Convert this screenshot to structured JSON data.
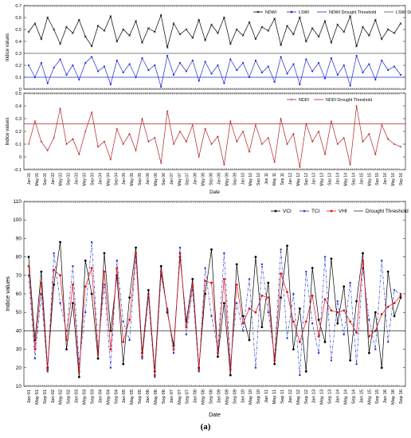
{
  "caption": "(a)",
  "chart_data": [
    {
      "type": "line",
      "ylabel": "Indice values",
      "xlabel": "",
      "ylim": [
        0,
        0.7
      ],
      "yticks": [
        0,
        0.1,
        0.2,
        0.3,
        0.4,
        0.5,
        0.6,
        0.7
      ],
      "legend_position": "top-right",
      "series": [
        {
          "name": "NDWI",
          "color": "#000000",
          "style": "solid",
          "marker": "x",
          "values": [
            0.48,
            0.55,
            0.42,
            0.6,
            0.5,
            0.38,
            0.52,
            0.47,
            0.58,
            0.44,
            0.36,
            0.53,
            0.49,
            0.61,
            0.4,
            0.5,
            0.45,
            0.57,
            0.39,
            0.51,
            0.48,
            0.62,
            0.35,
            0.55,
            0.46,
            0.5,
            0.43,
            0.58,
            0.41,
            0.54,
            0.47,
            0.6,
            0.38,
            0.5,
            0.45,
            0.56,
            0.42,
            0.52,
            0.49,
            0.59,
            0.37,
            0.53,
            0.46,
            0.6,
            0.4,
            0.51,
            0.44,
            0.57,
            0.39,
            0.54,
            0.48,
            0.61,
            0.36,
            0.52,
            0.45,
            0.58,
            0.42,
            0.5,
            0.47,
            0.55
          ]
        },
        {
          "name": "LSWI",
          "color": "#1f2bd0",
          "style": "solid",
          "marker": "o",
          "values": [
            0.2,
            0.1,
            0.22,
            0.05,
            0.18,
            0.25,
            0.12,
            0.2,
            0.08,
            0.22,
            0.27,
            0.15,
            0.19,
            0.04,
            0.24,
            0.14,
            0.21,
            0.1,
            0.26,
            0.16,
            0.2,
            0.02,
            0.28,
            0.12,
            0.22,
            0.15,
            0.24,
            0.07,
            0.23,
            0.13,
            0.2,
            0.05,
            0.25,
            0.16,
            0.22,
            0.1,
            0.24,
            0.14,
            0.19,
            0.06,
            0.27,
            0.13,
            0.21,
            0.04,
            0.25,
            0.15,
            0.22,
            0.09,
            0.26,
            0.12,
            0.2,
            0.03,
            0.28,
            0.14,
            0.21,
            0.08,
            0.24,
            0.16,
            0.19,
            0.12
          ]
        },
        {
          "name": "NDWI Drought Threshold",
          "color": "#1f2bd0",
          "style": "solid",
          "constant": 0.1
        },
        {
          "name": "LSWI Drought Threshold",
          "color": "#555555",
          "style": "solid",
          "constant": 0.3
        }
      ]
    },
    {
      "type": "line",
      "ylabel": "Indice values",
      "xlabel": "Date",
      "ylim": [
        -0.1,
        0.5
      ],
      "yticks": [
        -0.1,
        0,
        0.1,
        0.2,
        0.3,
        0.4,
        0.5
      ],
      "legend_position": "top-right",
      "series": [
        {
          "name": "NDDI",
          "color": "#b02020",
          "style": "solid",
          "marker": "+",
          "values": [
            0.1,
            0.28,
            0.12,
            0.05,
            0.15,
            0.38,
            0.1,
            0.14,
            0.02,
            0.2,
            0.35,
            0.08,
            0.12,
            -0.02,
            0.22,
            0.1,
            0.18,
            0.05,
            0.3,
            0.12,
            0.15,
            -0.05,
            0.36,
            0.1,
            0.2,
            0.12,
            0.25,
            0.0,
            0.22,
            0.1,
            0.16,
            -0.06,
            0.28,
            0.12,
            0.2,
            0.04,
            0.25,
            0.1,
            0.15,
            -0.04,
            0.3,
            0.1,
            0.18,
            -0.08,
            0.26,
            0.12,
            0.2,
            0.02,
            0.28,
            0.1,
            0.15,
            -0.06,
            0.4,
            0.12,
            0.18,
            0.02,
            0.25,
            0.14,
            0.1,
            0.08
          ]
        },
        {
          "name": "NDDI Drought Threshold",
          "color": "#b02020",
          "style": "solid",
          "constant": 0.26
        }
      ],
      "xticks": [
        "Jan 01",
        "May 01",
        "Sep 01",
        "Jan 02",
        "May 02",
        "Sep 02",
        "Jan 03",
        "May 03",
        "Sep 03",
        "Jan 04",
        "May 04",
        "Sep 04",
        "Jan 05",
        "May 05",
        "Sep 05",
        "Jan 06",
        "May 06",
        "Sep 06",
        "Jan 07",
        "May 07",
        "Sep 07",
        "Jan 08",
        "May 08",
        "Sep 08",
        "Jan 09",
        "May 09",
        "Sep 09",
        "Jan 10",
        "May 10",
        "Sep 10",
        "Jan 11",
        "May 11",
        "Sep 11",
        "Jan 12",
        "May 12",
        "Sep 12",
        "Jan 13",
        "May 13",
        "Sep 13",
        "Jan 14",
        "May 14",
        "Sep 14",
        "Jan 15",
        "May 15",
        "Sep 15",
        "Jan 16",
        "May 16",
        "Sep 16"
      ]
    },
    {
      "type": "line",
      "ylabel": "Indice values",
      "xlabel": "Date",
      "ylim": [
        10,
        110
      ],
      "yticks": [
        10,
        20,
        30,
        40,
        50,
        60,
        70,
        80,
        90,
        100,
        110
      ],
      "legend_position": "top-right",
      "series": [
        {
          "name": "VCI",
          "color": "#000000",
          "style": "solid",
          "marker": "o",
          "values": [
            80,
            35,
            72,
            20,
            65,
            88,
            30,
            55,
            15,
            78,
            60,
            25,
            82,
            40,
            70,
            22,
            58,
            85,
            28,
            62,
            18,
            75,
            50,
            32,
            80,
            45,
            68,
            20,
            60,
            84,
            26,
            55,
            16,
            76,
            48,
            35,
            80,
            42,
            66,
            22,
            58,
            86,
            30,
            52,
            18,
            74,
            46,
            34,
            79,
            44,
            64,
            24,
            56,
            82,
            28,
            50,
            20,
            72,
            48,
            58
          ]
        },
        {
          "name": "TCI",
          "color": "#2030d0",
          "style": "dashdot",
          "marker": "*",
          "values": [
            70,
            25,
            60,
            18,
            82,
            55,
            40,
            75,
            22,
            50,
            88,
            30,
            65,
            20,
            78,
            45,
            35,
            80,
            25,
            58,
            15,
            70,
            52,
            28,
            85,
            38,
            62,
            18,
            74,
            48,
            30,
            82,
            22,
            55,
            40,
            68,
            20,
            76,
            50,
            26,
            84,
            36,
            60,
            16,
            72,
            44,
            28,
            80,
            24,
            56,
            38,
            66,
            22,
            74,
            46,
            30,
            78,
            34,
            62,
            60
          ]
        },
        {
          "name": "VHI",
          "color": "#e01010",
          "style": "solid",
          "marker": "o",
          "values": [
            75,
            30,
            66,
            19,
            73,
            70,
            35,
            65,
            18,
            64,
            74,
            28,
            72,
            30,
            74,
            34,
            46,
            82,
            26,
            60,
            16,
            72,
            51,
            30,
            82,
            42,
            65,
            19,
            67,
            66,
            28,
            68,
            19,
            65,
            44,
            52,
            50,
            59,
            58,
            24,
            71,
            61,
            45,
            34,
            45,
            59,
            37,
            57,
            51,
            50,
            51,
            45,
            39,
            78,
            37,
            40,
            49,
            53,
            55,
            59
          ]
        },
        {
          "name": "Drought Threshold",
          "color": "#333333",
          "style": "solid",
          "constant": 40
        }
      ],
      "xticks": [
        "Jan 01",
        "May 01",
        "Sep 01",
        "Jan 02",
        "May 02",
        "Sep 02",
        "Jan 03",
        "May 03",
        "Sep 03",
        "Jan 04",
        "May 04",
        "Sep 04",
        "Jan 05",
        "May 05",
        "Sep 05",
        "Jan 06",
        "May 06",
        "Sep 06",
        "Jan 07",
        "May 07",
        "Sep 07",
        "Jan 08",
        "May 08",
        "Sep 08",
        "Jan 09",
        "May 09",
        "Sep 09",
        "Jan 10",
        "May 10",
        "Sep 10",
        "Jan 11",
        "May 11",
        "Sep 11",
        "Jan 12",
        "May 12",
        "Sep 12",
        "Jan 13",
        "May 13",
        "Sep 13",
        "Jan 14",
        "May 14",
        "Sep 14",
        "Jan 15",
        "May 15",
        "Sep 15",
        "Jan 16",
        "May 16",
        "Sep 16"
      ]
    }
  ]
}
